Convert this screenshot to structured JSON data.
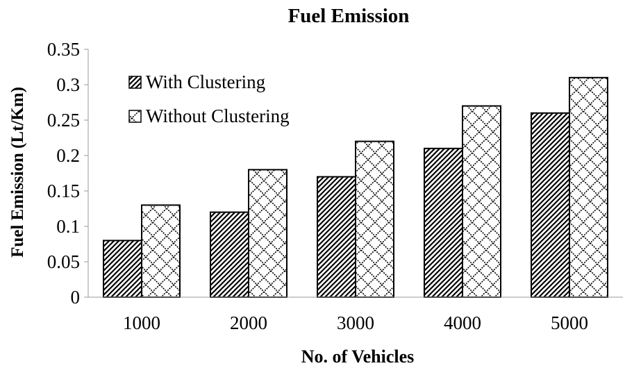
{
  "chart_data": {
    "type": "bar",
    "title": "Fuel Emission",
    "xlabel": "No. of Vehicles",
    "ylabel": "Fuel Emission (Lt/Km)",
    "categories": [
      "1000",
      "2000",
      "3000",
      "4000",
      "5000"
    ],
    "yticks": [
      "0",
      "0.05",
      "0.1",
      "0.15",
      "0.2",
      "0.25",
      "0.3",
      "0.35"
    ],
    "ylim": [
      0,
      0.35
    ],
    "legend_position": "top-left",
    "grid": false,
    "series": [
      {
        "name": "With Clustering",
        "pattern": "diagonal-hatch",
        "values": [
          0.08,
          0.12,
          0.17,
          0.21,
          0.26
        ]
      },
      {
        "name": "Without Clustering",
        "pattern": "diamond-lattice",
        "values": [
          0.13,
          0.18,
          0.22,
          0.27,
          0.31
        ]
      }
    ],
    "colors": {
      "ink": "#000000",
      "background": "#ffffff"
    }
  }
}
